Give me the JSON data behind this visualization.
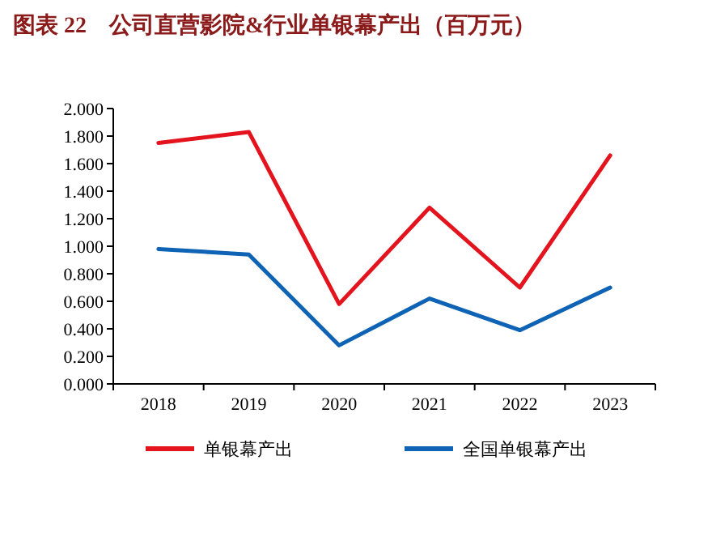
{
  "chart_data": {
    "type": "line",
    "title": "图表 22　公司直营影院&行业单银幕产出（百万元）",
    "categories": [
      "2018",
      "2019",
      "2020",
      "2021",
      "2022",
      "2023"
    ],
    "series": [
      {
        "name": "单银幕产出",
        "color": "#e3141e",
        "values": [
          1.75,
          1.83,
          0.58,
          1.28,
          0.7,
          1.66
        ]
      },
      {
        "name": "全国单银幕产出",
        "color": "#0f63b4",
        "values": [
          0.98,
          0.94,
          0.28,
          0.62,
          0.39,
          0.7
        ]
      }
    ],
    "ylim": [
      0,
      2
    ],
    "yticks": [
      {
        "value": 0,
        "label": "0.000"
      },
      {
        "value": 0.2,
        "label": "0.200"
      },
      {
        "value": 0.4,
        "label": "0.400"
      },
      {
        "value": 0.6,
        "label": "0.600"
      },
      {
        "value": 0.8,
        "label": "0.800"
      },
      {
        "value": 1,
        "label": "1.000"
      },
      {
        "value": 1.2,
        "label": "1.200"
      },
      {
        "value": 1.4,
        "label": "1.400"
      },
      {
        "value": 1.6,
        "label": "1.600"
      },
      {
        "value": 1.8,
        "label": "1.800"
      },
      {
        "value": 2,
        "label": "2.000"
      }
    ],
    "legend": "bottom",
    "grid": false,
    "marker": "none",
    "line_style": "solid"
  }
}
